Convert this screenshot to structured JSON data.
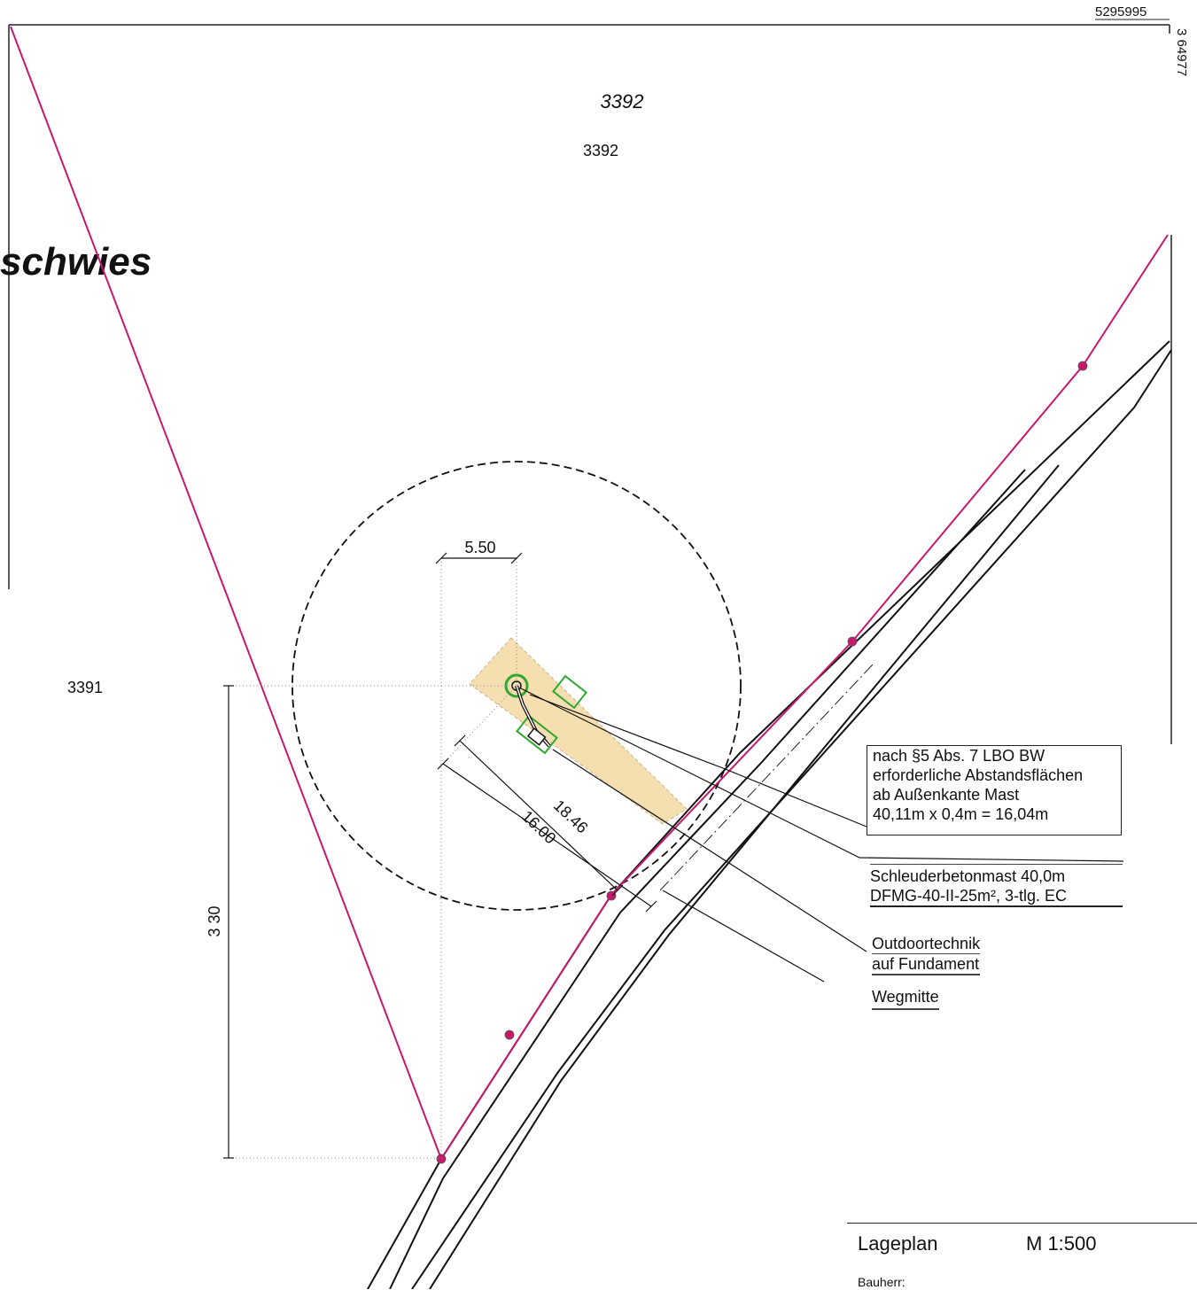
{
  "coordinates": {
    "northing": "5295995",
    "easting": "3 64977"
  },
  "parcels": {
    "north_italic": "3392",
    "north": "3392",
    "west": "3391"
  },
  "field_name": "schwies",
  "dimensions": {
    "width": "5.50",
    "dist_outer": "18.46",
    "dist_inner": "16.00",
    "height": "3 30"
  },
  "annotations": {
    "abstand": [
      "nach §5 Abs. 7 LBO BW",
      "erforderliche Abstandsflächen",
      "ab Außenkante Mast",
      "40,11m x 0,4m = 16,04m"
    ],
    "mast": [
      "Schleuderbetonmast 40,0m",
      "DFMG-40-II-25m², 3-tlg. EC"
    ],
    "outdoor": [
      "Outdoortechnik",
      "auf Fundament"
    ],
    "weg": "Wegmitte"
  },
  "title_block": {
    "title": "Lageplan",
    "scale": "M 1:500",
    "owner_label": "Bauherr:"
  },
  "colors": {
    "boundary": "#c8186e",
    "site": "#f5deb0",
    "equipment": "#2ea82e",
    "lines": "#111111"
  }
}
